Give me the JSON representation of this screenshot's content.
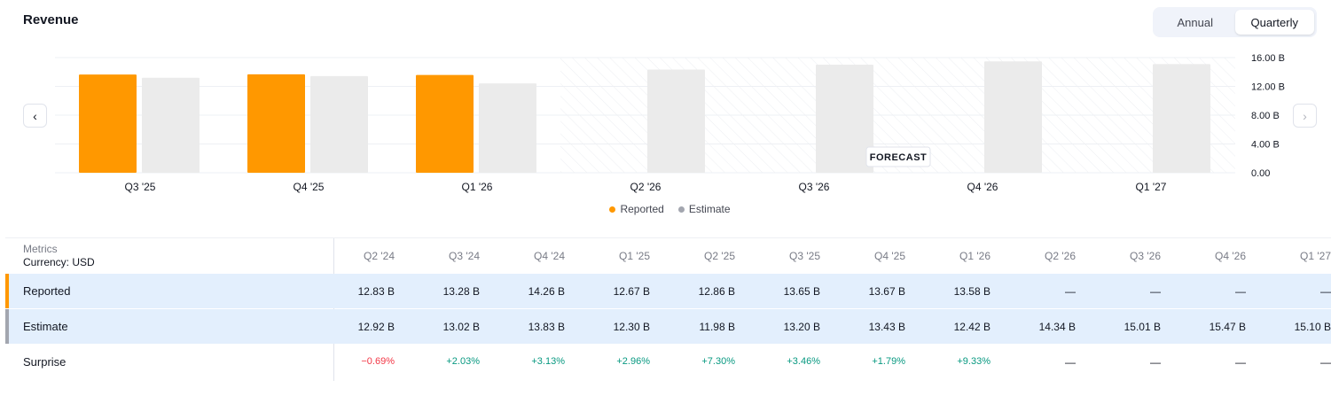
{
  "header": {
    "title": "Revenue"
  },
  "period_toggle": {
    "options": [
      "Annual",
      "Quarterly"
    ],
    "selected": "Quarterly"
  },
  "nav": {
    "prev_icon": "chevron-left-icon",
    "next_icon": "chevron-right-icon"
  },
  "forecast_label": "FORECAST",
  "legend": [
    {
      "label": "Reported",
      "color": "#ff9800"
    },
    {
      "label": "Estimate",
      "color": "#a3a6af"
    }
  ],
  "chart_data": {
    "type": "bar",
    "categories": [
      "Q3 '25",
      "Q4 '25",
      "Q1 '26",
      "Q2 '26",
      "Q3 '26",
      "Q4 '26",
      "Q1 '27"
    ],
    "series": [
      {
        "name": "Reported",
        "color": "#ff9800",
        "values": [
          13.65,
          13.67,
          13.58,
          null,
          null,
          null,
          null
        ]
      },
      {
        "name": "Estimate",
        "color": "#ebebeb",
        "values": [
          13.2,
          13.43,
          12.42,
          14.34,
          15.01,
          15.47,
          15.1
        ]
      }
    ],
    "yticks": [
      "16.00 B",
      "12.00 B",
      "8.00 B",
      "4.00 B",
      "0.00"
    ],
    "ylim": [
      0,
      16
    ],
    "forecast_from_index": 3
  },
  "table": {
    "metrics_label": "Metrics",
    "currency_label": "Currency: USD",
    "columns": [
      "Q2 '24",
      "Q3 '24",
      "Q4 '24",
      "Q1 '25",
      "Q2 '25",
      "Q3 '25",
      "Q4 '25",
      "Q1 '26",
      "Q2 '26",
      "Q3 '26",
      "Q4 '26",
      "Q1 '27"
    ],
    "rows": [
      {
        "label": "Reported",
        "color": "#ff9800",
        "values": [
          "12.83 B",
          "13.28 B",
          "14.26 B",
          "12.67 B",
          "12.86 B",
          "13.65 B",
          "13.67 B",
          "13.58 B",
          "—",
          "—",
          "—",
          "—"
        ]
      },
      {
        "label": "Estimate",
        "color": "#a3a6af",
        "values": [
          "12.92 B",
          "13.02 B",
          "13.83 B",
          "12.30 B",
          "11.98 B",
          "13.20 B",
          "13.43 B",
          "12.42 B",
          "14.34 B",
          "15.01 B",
          "15.47 B",
          "15.10 B"
        ]
      },
      {
        "label": "Surprise",
        "values": [
          "−0.69%",
          "+2.03%",
          "+3.13%",
          "+2.96%",
          "+7.30%",
          "+3.46%",
          "+1.79%",
          "+9.33%",
          "—",
          "—",
          "—",
          "—"
        ]
      }
    ]
  }
}
